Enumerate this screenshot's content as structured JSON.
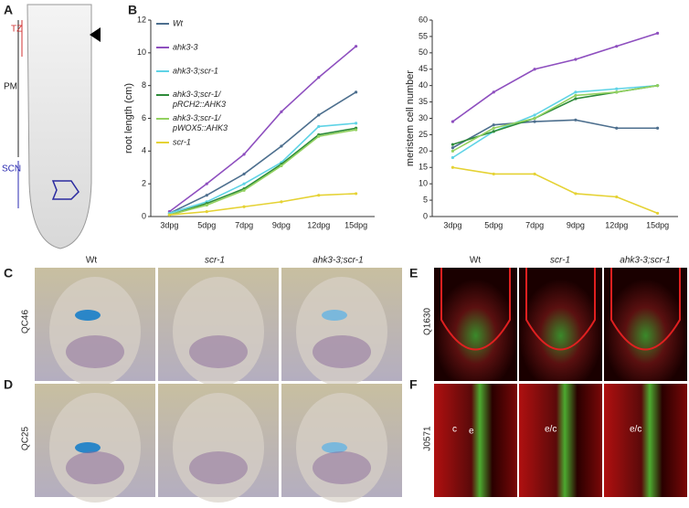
{
  "chart_data": [
    {
      "type": "line",
      "ylabel": "root length (cm)",
      "categories": [
        "3dpg",
        "5dpg",
        "7dpg",
        "9dpg",
        "12dpg",
        "15dpg"
      ],
      "ylim": [
        0,
        12
      ],
      "yticks": [
        0,
        2,
        4,
        6,
        8,
        10,
        12
      ],
      "legend": "top-left",
      "series": [
        {
          "name": "Wt",
          "color": "#4d6f8e",
          "values": [
            0.2,
            1.3,
            2.6,
            4.3,
            6.2,
            7.6
          ]
        },
        {
          "name": "ahk3-3",
          "color": "#8e4fbf",
          "values": [
            0.3,
            2.0,
            3.8,
            6.4,
            8.5,
            10.4
          ]
        },
        {
          "name": "ahk3-3;scr-1",
          "color": "#5fd3e6",
          "values": [
            0.2,
            0.9,
            2.0,
            3.3,
            5.5,
            5.7
          ]
        },
        {
          "name": "ahk3-3;scr-1/ pRCH2::AHK3",
          "color": "#2e8b3a",
          "values": [
            0.1,
            0.8,
            1.7,
            3.2,
            5.0,
            5.4
          ]
        },
        {
          "name": "ahk3-3;scr-1/ pWOX5::AHK3",
          "color": "#93d160",
          "values": [
            0.1,
            0.7,
            1.6,
            3.1,
            4.9,
            5.3
          ]
        },
        {
          "name": "scr-1",
          "color": "#e5d234",
          "values": [
            0.1,
            0.3,
            0.6,
            0.9,
            1.3,
            1.4
          ]
        }
      ]
    },
    {
      "type": "line",
      "ylabel": "meristem cell number",
      "categories": [
        "3dpg",
        "5dpg",
        "7dpg",
        "9dpg",
        "12dpg",
        "15dpg"
      ],
      "ylim": [
        0,
        60
      ],
      "yticks": [
        0,
        5,
        10,
        15,
        20,
        25,
        30,
        35,
        40,
        45,
        50,
        55,
        60
      ],
      "series": [
        {
          "name": "Wt",
          "color": "#4d6f8e",
          "values": [
            21,
            28,
            29,
            29.5,
            27,
            27
          ]
        },
        {
          "name": "ahk3-3",
          "color": "#8e4fbf",
          "values": [
            29,
            38,
            45,
            48,
            52,
            56
          ]
        },
        {
          "name": "ahk3-3;scr-1",
          "color": "#5fd3e6",
          "values": [
            18,
            26,
            31,
            38,
            39,
            40
          ]
        },
        {
          "name": "ahk3-3;scr-1/ pRCH2::AHK3",
          "color": "#2e8b3a",
          "values": [
            22,
            26,
            30,
            36,
            38,
            40
          ]
        },
        {
          "name": "ahk3-3;scr-1/ pWOX5::AHK3",
          "color": "#93d160",
          "values": [
            20,
            27,
            30,
            37,
            38,
            40
          ]
        },
        {
          "name": "scr-1",
          "color": "#e5d234",
          "values": [
            15,
            13,
            13,
            7,
            6,
            1
          ]
        }
      ]
    }
  ],
  "figure": {
    "panel_a": {
      "letter": "A",
      "labels": [
        "TZ",
        "PM",
        "SCN"
      ]
    },
    "panel_b": {
      "letter": "B"
    },
    "panel_c": {
      "letter": "C",
      "columns": [
        "Wt",
        "scr-1",
        "ahk3-3;scr-1"
      ],
      "row_label": "QC46"
    },
    "panel_d": {
      "letter": "D",
      "row_label": "QC25"
    },
    "panel_e": {
      "letter": "E",
      "columns": [
        "Wt",
        "scr-1",
        "ahk3-3;scr-1"
      ],
      "row_label": "Q1630"
    },
    "panel_f": {
      "letter": "F",
      "row_label": "J0571",
      "cell_labels": [
        "c",
        "e",
        "e/c",
        "e/c"
      ]
    }
  }
}
